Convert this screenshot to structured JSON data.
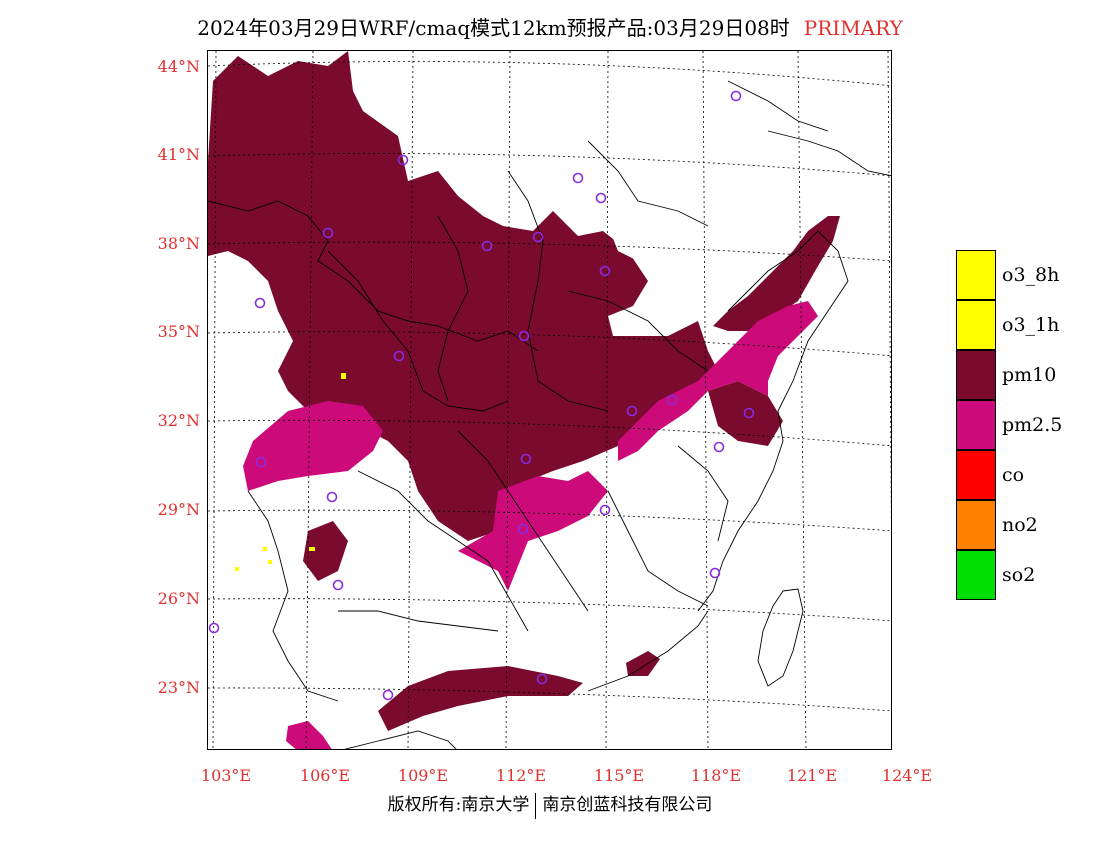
{
  "title": {
    "main": "2024年03月29日WRF/cmaq模式12km预报产品:03月29日08时",
    "tag": "PRIMARY"
  },
  "axes": {
    "lat_labels": [
      "44°N",
      "41°N",
      "38°N",
      "35°N",
      "32°N",
      "29°N",
      "26°N",
      "23°N"
    ],
    "lon_labels": [
      "103°E",
      "106°E",
      "109°E",
      "112°E",
      "115°E",
      "118°E",
      "121°E",
      "124°E"
    ]
  },
  "legend": [
    {
      "label": "o3_8h",
      "color": "#ffff00"
    },
    {
      "label": "o3_1h",
      "color": "#ffff00"
    },
    {
      "label": "pm10",
      "color": "#7a0a2e"
    },
    {
      "label": "pm2.5",
      "color": "#cc0a7a"
    },
    {
      "label": "co",
      "color": "#ff0000"
    },
    {
      "label": "no2",
      "color": "#ff7f00"
    },
    {
      "label": "so2",
      "color": "#00dd00"
    }
  ],
  "footer": {
    "left": "版权所有:南京大学",
    "right": "南京创蓝科技有限公司"
  },
  "colors": {
    "pm10": "#7a0a2e",
    "pm25": "#cc0a7a",
    "station": "#8a2be2",
    "axis_label": "#e03030"
  }
}
